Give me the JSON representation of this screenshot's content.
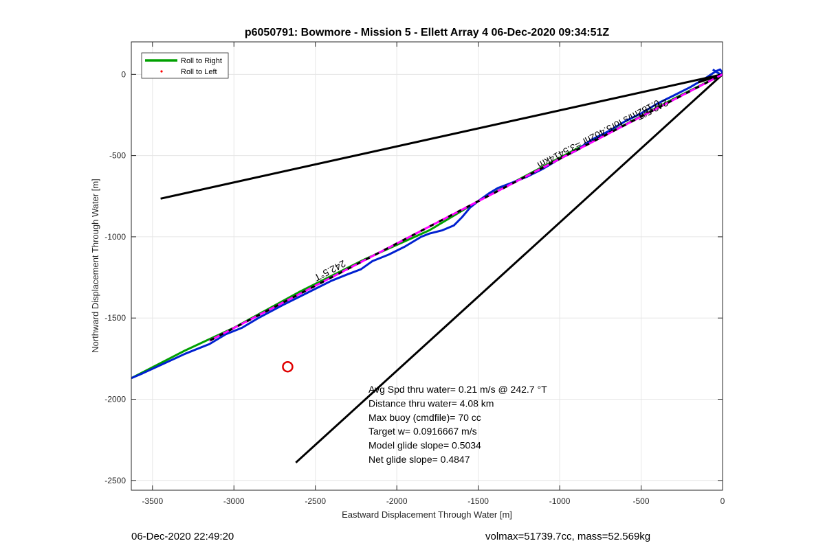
{
  "chart_data": {
    "type": "line",
    "title": "p6050791: Bowmore - Mission 5 - Ellett Array 4 06-Dec-2020 09:34:51Z",
    "xlabel": "Eastward Displacement Through Water [m]",
    "ylabel": "Northward Displacement Through Water [m]",
    "xlim": [
      -3630,
      0
    ],
    "ylim": [
      -2560,
      200
    ],
    "xticks": [
      -3500,
      -3000,
      -2500,
      -2000,
      -1500,
      -1000,
      -500,
      0
    ],
    "yticks": [
      -2500,
      -2000,
      -1500,
      -1000,
      -500,
      0
    ],
    "grid": true,
    "legend_position": "top-left",
    "legend": [
      {
        "label": "Roll to Right",
        "color": "#00a000",
        "marker": "line"
      },
      {
        "label": "Roll to Left",
        "color": "#ff0000",
        "marker": "dot"
      }
    ],
    "series": [
      {
        "name": "Roll to Right",
        "color": "#00a000",
        "x": [
          -3630,
          -3300,
          -3000,
          -2600,
          -2200,
          -1800,
          -1500,
          -1200,
          -900,
          -600,
          -300,
          -100,
          0
        ],
        "y": [
          -1870,
          -1700,
          -1560,
          -1340,
          -1140,
          -960,
          -780,
          -620,
          -460,
          -310,
          -150,
          -50,
          0
        ]
      },
      {
        "color": "#0020d0",
        "x": [
          -3630,
          -3560,
          -3430,
          -3300,
          -3200,
          -3150,
          -3050,
          -2950,
          -2850,
          -2700,
          -2600,
          -2500,
          -2400,
          -2300,
          -2220,
          -2150,
          -2050,
          -1950,
          -1850,
          -1800,
          -1720,
          -1650,
          -1600,
          -1550,
          -1500,
          -1430,
          -1380,
          -1300,
          -1200,
          -1100,
          -1000,
          -900,
          -800,
          -700,
          -600,
          -500,
          -400,
          -300,
          -200,
          -100,
          -40,
          -15,
          0,
          -10,
          -30,
          -60
        ],
        "y": [
          -1870,
          -1840,
          -1780,
          -1720,
          -1680,
          -1660,
          -1600,
          -1560,
          -1500,
          -1420,
          -1370,
          -1320,
          -1270,
          -1230,
          -1200,
          -1150,
          -1110,
          -1060,
          -1000,
          -980,
          -960,
          -930,
          -880,
          -820,
          -780,
          -730,
          -700,
          -670,
          -630,
          -580,
          -520,
          -470,
          -400,
          -350,
          -290,
          -240,
          -180,
          -130,
          -80,
          -20,
          20,
          30,
          10,
          0,
          10,
          30
        ]
      },
      {
        "color": "#ff00ff",
        "dashed": true,
        "x": [
          -3150,
          0
        ],
        "y": [
          -1640,
          0
        ]
      }
    ],
    "reference_lines": [
      {
        "x": [
          -3150,
          0
        ],
        "y": [
          -1640,
          0
        ],
        "color": "#000000",
        "dashed": true
      },
      {
        "x": [
          -3450,
          0
        ],
        "y": [
          -765,
          0
        ],
        "color": "#000000"
      },
      {
        "x": [
          -2620,
          0
        ],
        "y": [
          -2390,
          0
        ],
        "color": "#000000"
      },
      {
        "x": [
          -150,
          0
        ],
        "y": [
          -50,
          0
        ],
        "color": "#000000"
      }
    ],
    "circle_marker": {
      "x": -2670,
      "y": -1800,
      "color": "#e00000"
    },
    "annotations": [
      {
        "text": "242.5°T",
        "x": -2420,
        "y": -1190,
        "rotation": 152.3
      },
      {
        "text": "242.5°T",
        "x": -440,
        "y": -200,
        "rotation": 152.3
      },
      {
        "text": "0.182m/s for5.402hr =3.5414km",
        "x": -770,
        "y": -350,
        "rotation": 152.3
      }
    ],
    "info_box": [
      "Avg Spd thru water=  0.21 m/s @ 242.7 °T",
      "Distance thru water=  4.08 km",
      "Max buoy (cmdfile)= 70 cc",
      "Target w= 0.0916667 m/s",
      "Model glide slope= 0.5034",
      "Net glide slope= 0.4847"
    ]
  },
  "footer": {
    "left": "06-Dec-2020 22:49:20",
    "right": "volmax=51739.7cc, mass=52.569kg"
  }
}
